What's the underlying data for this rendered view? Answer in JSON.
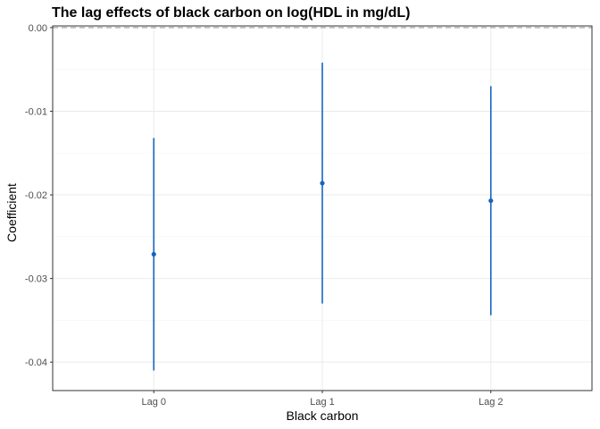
{
  "chart_data": {
    "type": "scatter",
    "title": "The lag effects of black carbon on log(HDL in mg/dL)",
    "xlabel": "Black carbon",
    "ylabel": "Coefficient",
    "categories": [
      "Lag 0",
      "Lag 1",
      "Lag 2"
    ],
    "estimates": [
      -0.0271,
      -0.0186,
      -0.0207
    ],
    "lower": [
      -0.041,
      -0.033,
      -0.0344
    ],
    "upper": [
      -0.0132,
      -0.0042,
      -0.007
    ],
    "ylim": [
      -0.0434,
      0.0002
    ],
    "yticks": [
      0.0,
      -0.01,
      -0.02,
      -0.03,
      -0.04
    ],
    "ytick_labels": [
      "0.00",
      "-0.01",
      "-0.02",
      "-0.03",
      "-0.04"
    ],
    "reference_line": 0.0,
    "grid": true,
    "legend": "none",
    "colors": {
      "series": "#1565C0",
      "reference_line": "#a6a6a6"
    }
  }
}
